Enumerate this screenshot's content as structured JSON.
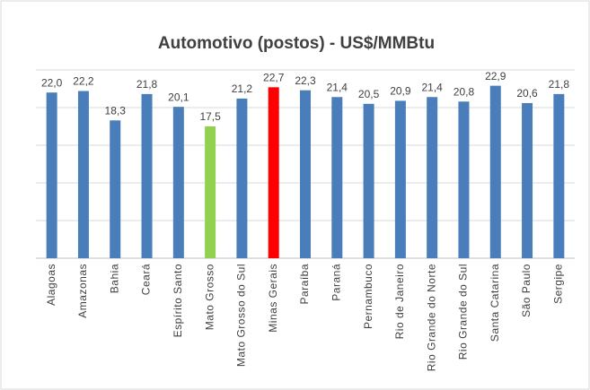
{
  "chart_data": {
    "type": "bar",
    "title": "Automotivo (postos) - US$/MMBtu",
    "categories": [
      "Alagoas",
      "Amazonas",
      "Bahia",
      "Ceará",
      "Espírito Santo",
      "Mato Grosso",
      "Mato Grosso do Sul",
      "Minas Gerais",
      "Paraíba",
      "Paraná",
      "Pernambuco",
      "Rio de Janeiro",
      "Rio Grande do Norte",
      "Rio Grande do Sul",
      "Santa Catarina",
      "São Paulo",
      "Sergipe"
    ],
    "values": [
      22.0,
      22.2,
      18.3,
      21.8,
      20.1,
      17.5,
      21.2,
      22.7,
      22.3,
      21.4,
      20.5,
      20.9,
      21.4,
      20.8,
      22.9,
      20.6,
      21.8
    ],
    "value_labels": [
      "22,0",
      "22,2",
      "18,3",
      "21,8",
      "20,1",
      "17,5",
      "21,2",
      "22,7",
      "22,3",
      "21,4",
      "20,5",
      "20,9",
      "21,4",
      "20,8",
      "22,9",
      "20,6",
      "21,8"
    ],
    "colors": [
      "#4a7ebb",
      "#4a7ebb",
      "#4a7ebb",
      "#4a7ebb",
      "#4a7ebb",
      "#92d050",
      "#4a7ebb",
      "#ff0000",
      "#4a7ebb",
      "#4a7ebb",
      "#4a7ebb",
      "#4a7ebb",
      "#4a7ebb",
      "#4a7ebb",
      "#4a7ebb",
      "#4a7ebb",
      "#4a7ebb"
    ],
    "ylim": [
      0,
      25
    ],
    "yticks": [
      0,
      5,
      10,
      15,
      20,
      25
    ],
    "grid": true
  }
}
